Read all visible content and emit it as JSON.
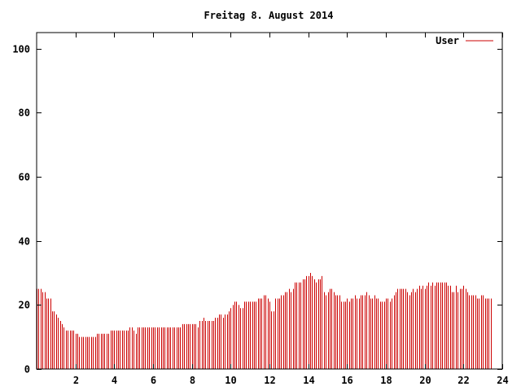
{
  "chart_data": {
    "type": "bar",
    "title": "Freitag 8. August 2014",
    "xlabel": "",
    "ylabel": "",
    "xlim": [
      0,
      24
    ],
    "ylim": [
      0,
      105
    ],
    "x_ticks": [
      2,
      4,
      6,
      8,
      10,
      12,
      14,
      16,
      18,
      20,
      22,
      24
    ],
    "y_ticks": [
      0,
      20,
      40,
      60,
      80,
      100
    ],
    "grid": false,
    "legend_position": "top-right",
    "series": [
      {
        "name": "User",
        "color": "#cc0000",
        "x_step_hours": 0.1,
        "values": [
          25,
          25,
          25,
          24,
          24,
          22,
          22,
          22,
          18,
          18,
          17,
          16,
          15,
          14,
          13,
          12,
          12,
          12,
          12,
          12,
          11,
          11,
          10,
          10,
          10,
          10,
          10,
          10,
          10,
          10,
          10,
          11,
          11,
          11,
          11,
          11,
          11,
          11,
          12,
          12,
          12,
          12,
          12,
          12,
          12,
          12,
          12,
          12,
          13,
          13,
          12,
          11,
          13,
          13,
          13,
          13,
          13,
          13,
          13,
          13,
          13,
          13,
          13,
          13,
          13,
          13,
          13,
          13,
          13,
          13,
          13,
          13,
          13,
          13,
          13,
          14,
          14,
          14,
          14,
          14,
          14,
          14,
          14,
          13,
          15,
          15,
          16,
          15,
          15,
          15,
          15,
          15,
          16,
          16,
          17,
          17,
          16,
          17,
          17,
          18,
          19,
          20,
          21,
          21,
          20,
          19,
          19,
          21,
          21,
          21,
          21,
          21,
          21,
          21,
          22,
          22,
          22,
          23,
          23,
          22,
          21,
          18,
          18,
          22,
          22,
          22,
          23,
          23,
          24,
          24,
          25,
          24,
          25,
          27,
          27,
          27,
          27,
          28,
          28,
          29,
          29,
          30,
          29,
          28,
          27,
          28,
          28,
          29,
          24,
          23,
          24,
          25,
          25,
          24,
          23,
          23,
          23,
          21,
          21,
          21,
          22,
          21,
          22,
          22,
          23,
          22,
          22,
          23,
          23,
          23,
          24,
          23,
          22,
          22,
          23,
          22,
          22,
          21,
          21,
          21,
          22,
          22,
          21,
          22,
          23,
          24,
          25,
          25,
          25,
          25,
          25,
          24,
          23,
          24,
          25,
          24,
          25,
          26,
          25,
          26,
          25,
          26,
          27,
          26,
          27,
          26,
          27,
          27,
          27,
          27,
          27,
          27,
          26,
          26,
          24,
          24,
          26,
          24,
          25,
          25,
          26,
          25,
          24,
          23,
          23,
          23,
          23,
          22,
          22,
          23,
          23,
          22,
          22,
          22,
          22
        ]
      }
    ]
  }
}
